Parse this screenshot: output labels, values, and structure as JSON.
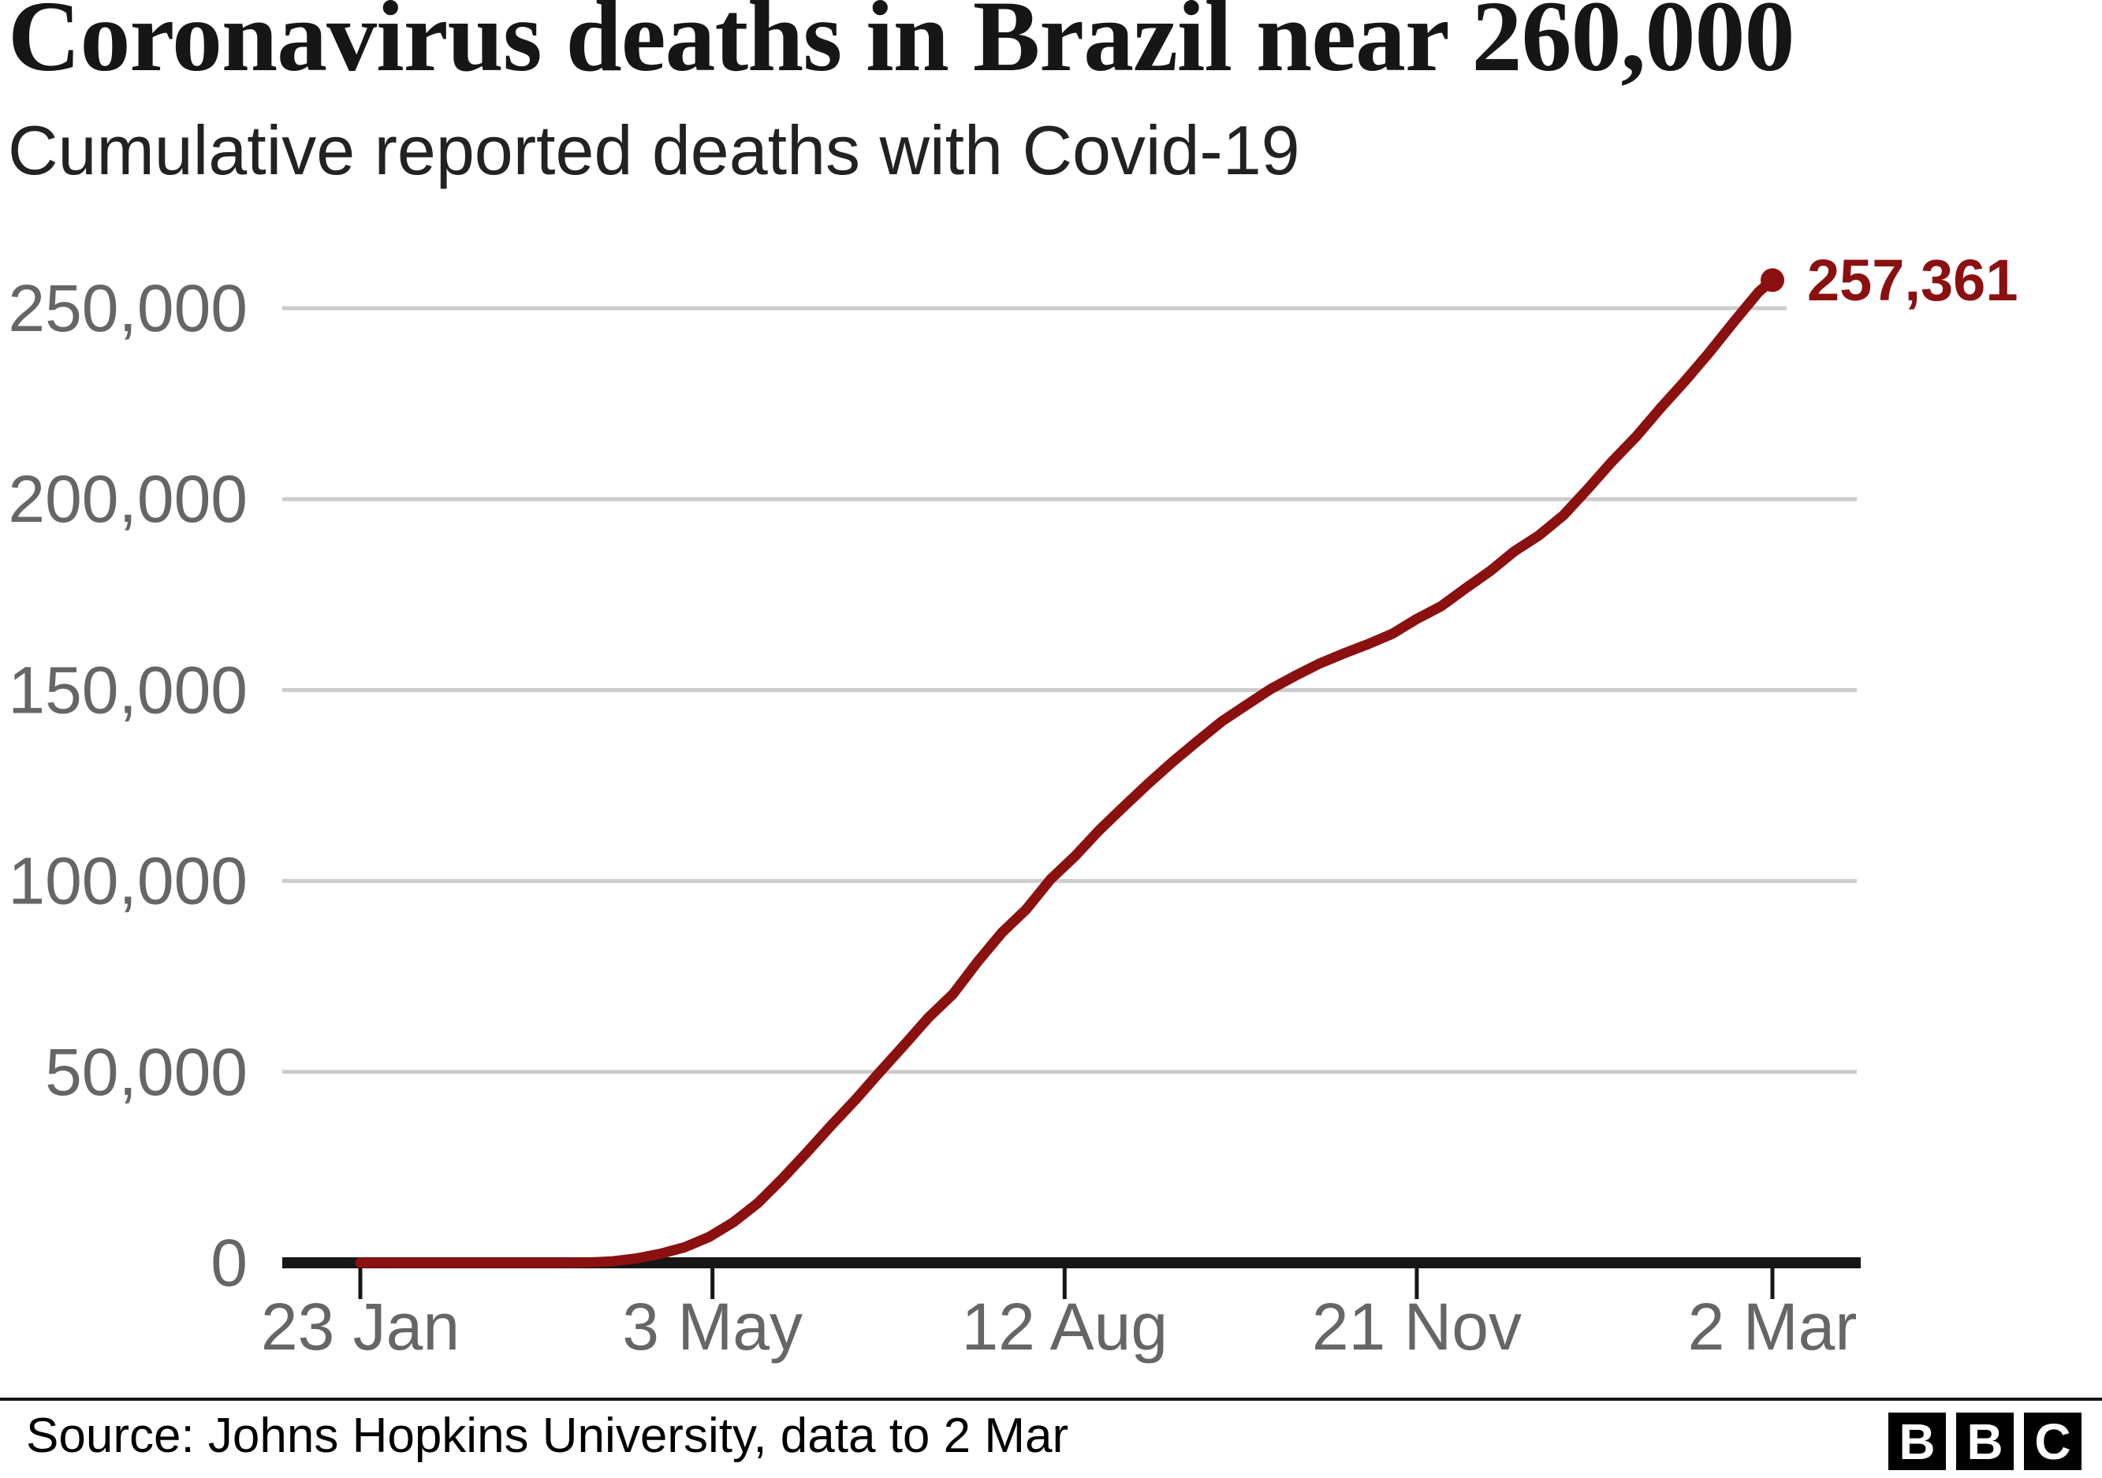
{
  "header": {
    "title": "Coronavirus deaths in Brazil near 260,000",
    "subtitle": "Cumulative reported deaths with Covid-19"
  },
  "chart_data": {
    "type": "line",
    "title": "Coronavirus deaths in Brazil near 260,000",
    "subtitle": "Cumulative reported deaths with Covid-19",
    "xlabel": "",
    "ylabel": "",
    "ylim": [
      0,
      250000
    ],
    "grid": true,
    "x_axis": {
      "domain_days": [
        0,
        405
      ],
      "ticks": [
        {
          "label": "23 Jan",
          "day": 0
        },
        {
          "label": "3 May",
          "day": 101
        },
        {
          "label": "12 Aug",
          "day": 202
        },
        {
          "label": "21 Nov",
          "day": 303
        },
        {
          "label": "2 Mar",
          "day": 405
        }
      ]
    },
    "y_axis": {
      "range": [
        0,
        250000
      ],
      "ticks": [
        {
          "label": "0",
          "value": 0
        },
        {
          "label": "50,000",
          "value": 50000
        },
        {
          "label": "100,000",
          "value": 100000
        },
        {
          "label": "150,000",
          "value": 150000
        },
        {
          "label": "200,000",
          "value": 200000
        },
        {
          "label": "250,000",
          "value": 250000
        }
      ]
    },
    "series": [
      {
        "name": "Cumulative reported deaths with Covid-19",
        "color": "#8b1010",
        "points": [
          [
            0,
            0
          ],
          [
            40,
            0
          ],
          [
            54,
            1
          ],
          [
            58,
            6
          ],
          [
            65,
            92
          ],
          [
            72,
            359
          ],
          [
            79,
            1124
          ],
          [
            86,
            2354
          ],
          [
            93,
            4057
          ],
          [
            100,
            6750
          ],
          [
            107,
            10627
          ],
          [
            114,
            15633
          ],
          [
            121,
            22013
          ],
          [
            128,
            28834
          ],
          [
            135,
            35930
          ],
          [
            142,
            42720
          ],
          [
            149,
            49976
          ],
          [
            156,
            57070
          ],
          [
            163,
            64265
          ],
          [
            170,
            70398
          ],
          [
            177,
            78772
          ],
          [
            184,
            86449
          ],
          [
            191,
            92568
          ],
          [
            198,
            100477
          ],
          [
            205,
            106523
          ],
          [
            212,
            113358
          ],
          [
            219,
            119504
          ],
          [
            226,
            125521
          ],
          [
            233,
            131210
          ],
          [
            240,
            136532
          ],
          [
            247,
            141741
          ],
          [
            254,
            145987
          ],
          [
            261,
            150198
          ],
          [
            268,
            153675
          ],
          [
            275,
            156903
          ],
          [
            282,
            159562
          ],
          [
            289,
            162015
          ],
          [
            296,
            164737
          ],
          [
            303,
            168613
          ],
          [
            310,
            171974
          ],
          [
            317,
            176628
          ],
          [
            324,
            181123
          ],
          [
            331,
            186356
          ],
          [
            338,
            190488
          ],
          [
            345,
            195725
          ],
          [
            352,
            202631
          ],
          [
            359,
            209847
          ],
          [
            366,
            216445
          ],
          [
            373,
            223945
          ],
          [
            380,
            231012
          ],
          [
            387,
            238532
          ],
          [
            394,
            246504
          ],
          [
            401,
            254221
          ],
          [
            405,
            257361
          ]
        ]
      }
    ],
    "end_label": {
      "text": "257,361",
      "value": 257361,
      "day": 405
    },
    "colors": {
      "line": "#8b1010",
      "grid": "#cccccc",
      "axis": "#161616",
      "tick_text": "#666666",
      "label": "#8b1010"
    }
  },
  "footer": {
    "source": "Source: Johns Hopkins University, data to 2 Mar",
    "logo": [
      "B",
      "B",
      "C"
    ]
  }
}
